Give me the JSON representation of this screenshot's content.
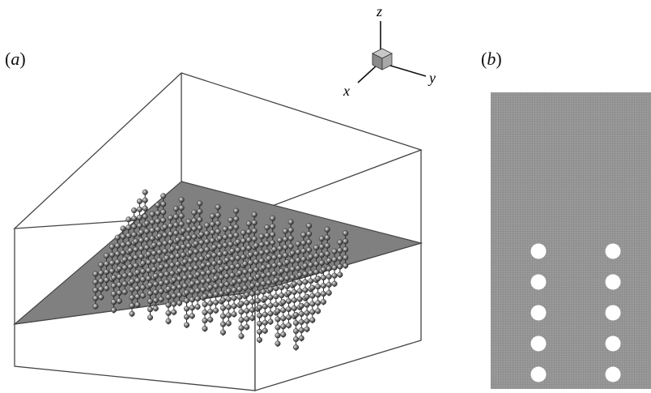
{
  "panel_a": {
    "label_open": "(",
    "label_letter": "a",
    "label_close": ")",
    "axes": {
      "x": "x",
      "y": "y",
      "z": "z"
    },
    "array": {
      "rows": 10,
      "columns": 12,
      "beads_per_filament": 5
    }
  },
  "panel_b": {
    "label_open": "(",
    "label_letter": "b",
    "label_close": ")",
    "holes": {
      "rows": 5,
      "columns": 2
    }
  },
  "colors": {
    "floor": "#808080",
    "mesh": "#8c8c8c",
    "box_line": "#444444",
    "bead": "#6e6e6e",
    "hole": "#ffffff"
  }
}
